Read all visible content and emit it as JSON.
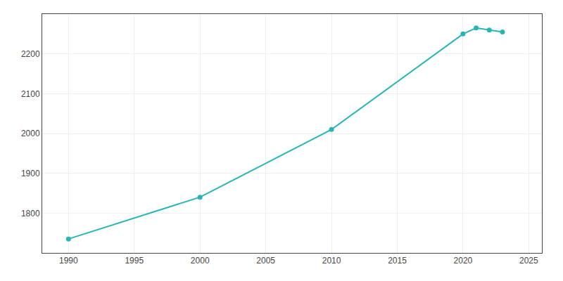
{
  "chart_data": {
    "type": "line",
    "x": [
      1990,
      2000,
      2010,
      2020,
      2021,
      2022,
      2023
    ],
    "values": [
      1735,
      1840,
      2010,
      2250,
      2265,
      2260,
      2255
    ],
    "color": "#2ab5b5",
    "marker": "circle",
    "xlim": [
      1988,
      2026
    ],
    "ylim": [
      1700,
      2300
    ],
    "xticks": [
      1990,
      1995,
      2000,
      2005,
      2010,
      2015,
      2020,
      2025
    ],
    "yticks": [
      1800,
      1900,
      2000,
      2100,
      2200
    ],
    "grid": true
  }
}
